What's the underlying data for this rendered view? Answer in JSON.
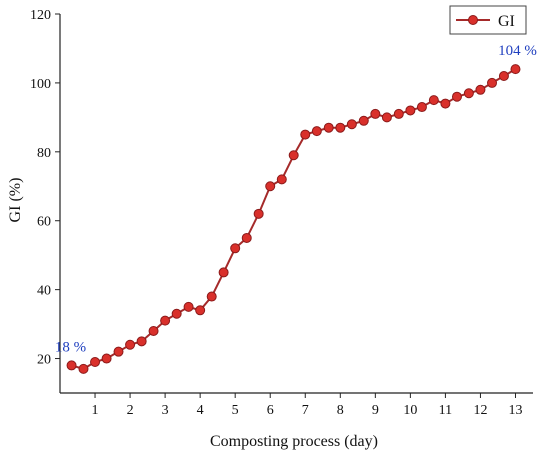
{
  "chart_data": {
    "type": "line",
    "xlabel": "Composting process (day)",
    "ylabel": "GI (%)",
    "xlim": [
      0,
      13.5
    ],
    "ylim": [
      10,
      120
    ],
    "xticks": [
      1,
      2,
      3,
      4,
      5,
      6,
      7,
      8,
      9,
      10,
      11,
      12,
      13
    ],
    "yticks": [
      20,
      40,
      60,
      80,
      100,
      120
    ],
    "grid": false,
    "legend_position": "top-right",
    "series": [
      {
        "name": "GI",
        "color": "#a52a2a",
        "marker_color": "#d9302b",
        "x": [
          0.33,
          0.67,
          1,
          1.33,
          1.67,
          2,
          2.33,
          2.67,
          3,
          3.33,
          3.67,
          4,
          4.33,
          4.67,
          5,
          5.33,
          5.67,
          6,
          6.33,
          6.67,
          7,
          7.33,
          7.67,
          8,
          8.33,
          8.67,
          9,
          9.33,
          9.67,
          10,
          10.33,
          10.67,
          11,
          11.33,
          11.67,
          12,
          12.33,
          12.67,
          13
        ],
        "values": [
          18,
          17,
          19,
          20,
          22,
          24,
          25,
          28,
          31,
          33,
          35,
          34,
          38,
          45,
          52,
          55,
          62,
          70,
          72,
          79,
          85,
          86,
          87,
          87,
          88,
          89,
          91,
          90,
          91,
          92,
          93,
          95,
          94,
          96,
          97,
          98,
          100,
          102,
          104
        ]
      }
    ],
    "annotations": [
      {
        "text": "18 %",
        "x": 0.33,
        "y": 18,
        "color": "#1f3fbf"
      },
      {
        "text": "104 %",
        "x": 13,
        "y": 104,
        "color": "#1f3fbf"
      }
    ]
  }
}
